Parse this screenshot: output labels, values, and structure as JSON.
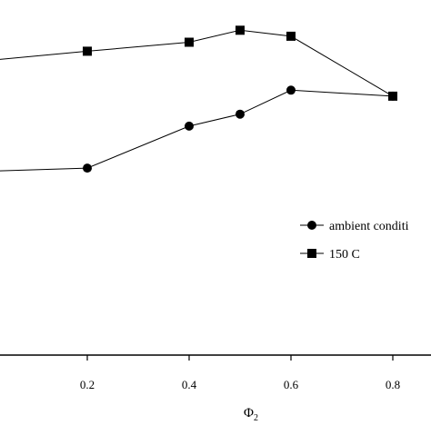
{
  "chart_data": {
    "type": "line",
    "title": "",
    "xlabel": "Φ",
    "xlabel_subscript": "2",
    "ylabel": "",
    "xlim": [
      -0.18,
      0.94
    ],
    "ylim": [
      0,
      1
    ],
    "x_ticks": [
      0.2,
      0.4,
      0.6,
      0.8
    ],
    "x_tick_labels": [
      "0.2",
      "0.4",
      "0.6",
      "0.8"
    ],
    "grid": false,
    "legend_position": "right",
    "series": [
      {
        "name": "ambient conditi",
        "marker": "circle",
        "color": "#000000",
        "x": [
          -0.18,
          0.2,
          0.4,
          0.5,
          0.6,
          0.8
        ],
        "y": [
          0.51,
          0.53,
          0.67,
          0.71,
          0.79,
          0.77
        ]
      },
      {
        "name": "150 C",
        "marker": "square",
        "color": "#000000",
        "x": [
          -0.18,
          0.2,
          0.4,
          0.5,
          0.6,
          0.8
        ],
        "y": [
          0.86,
          0.92,
          0.95,
          0.99,
          0.97,
          0.77
        ]
      }
    ]
  }
}
